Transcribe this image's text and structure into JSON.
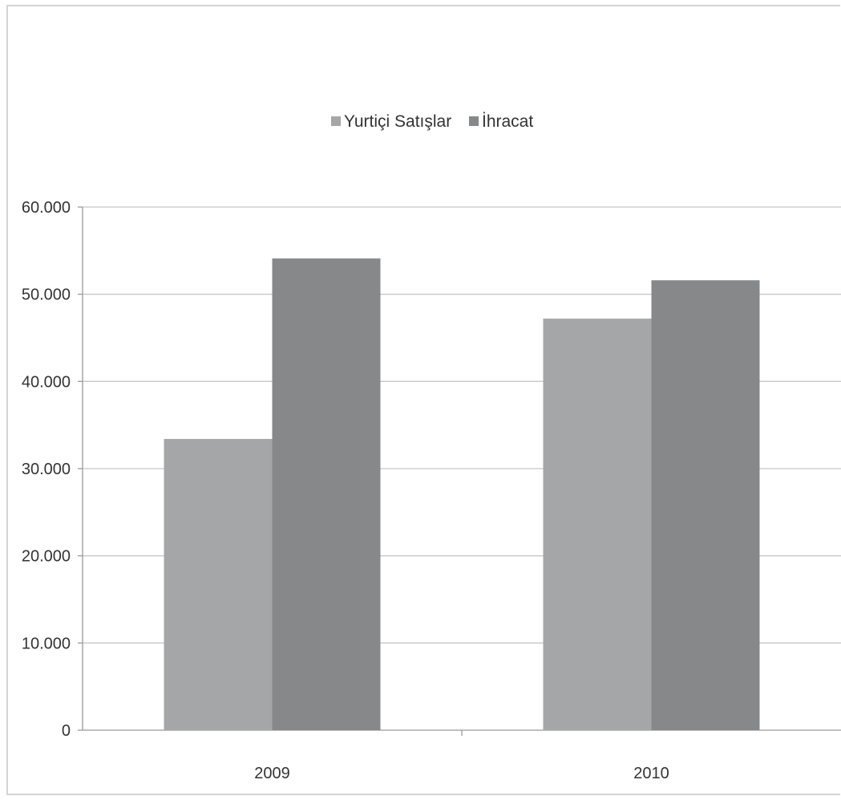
{
  "chart_data": {
    "type": "bar",
    "title": "",
    "xlabel": "",
    "ylabel": "",
    "categories": [
      "2009",
      "2010"
    ],
    "series": [
      {
        "name": "Yurtiçi Satışlar",
        "values": [
          33400,
          47200
        ],
        "color": "#a5a6a8"
      },
      {
        "name": "İhracat",
        "values": [
          54100,
          51600
        ],
        "color": "#87888a"
      }
    ],
    "ylim": [
      0,
      60000
    ],
    "y_ticks": [
      {
        "value": 0,
        "label": "0"
      },
      {
        "value": 10000,
        "label": "10.000"
      },
      {
        "value": 20000,
        "label": "20.000"
      },
      {
        "value": 30000,
        "label": "30.000"
      },
      {
        "value": 40000,
        "label": "40.000"
      },
      {
        "value": 50000,
        "label": "50.000"
      },
      {
        "value": 60000,
        "label": "60.000"
      }
    ],
    "grid": true,
    "legend_position": "top-center"
  }
}
